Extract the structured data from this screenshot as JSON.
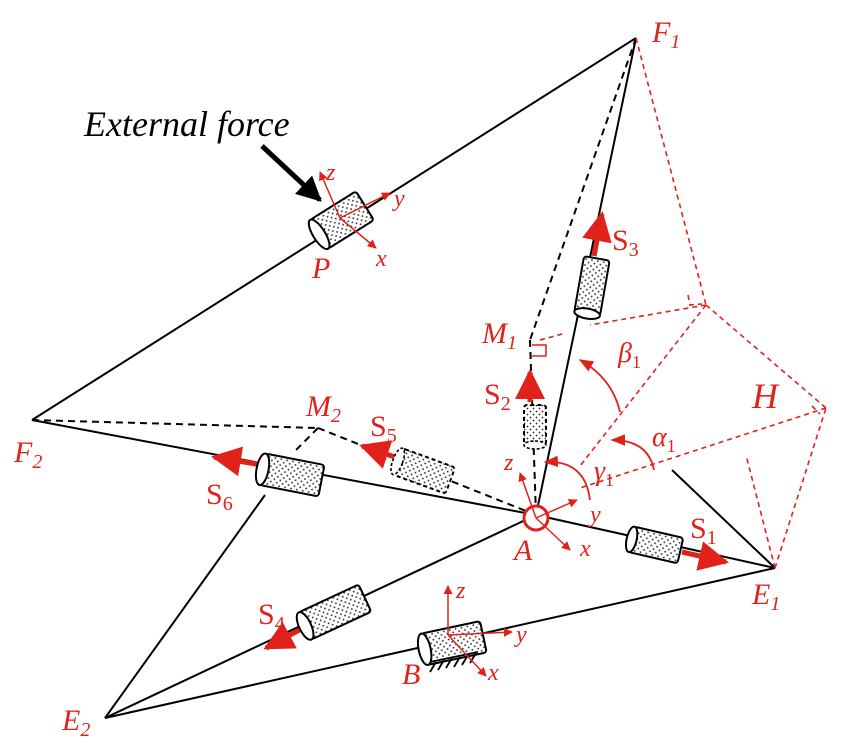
{
  "colors": {
    "accent": "#e0221a",
    "line": "#000000"
  },
  "annotation": {
    "external_force": "External force"
  },
  "points": {
    "F1": "F",
    "F1_sub": "1",
    "F2": "F",
    "F2_sub": "2",
    "E1": "E",
    "E1_sub": "1",
    "E2": "E",
    "E2_sub": "2",
    "M1": "M",
    "M1_sub": "1",
    "M2": "M",
    "M2_sub": "2",
    "A": "A",
    "B": "B",
    "P": "P",
    "H": "H"
  },
  "actuators": {
    "S1": "S",
    "S1_sub": "1",
    "S2": "S",
    "S2_sub": "2",
    "S3": "S",
    "S3_sub": "3",
    "S4": "S",
    "S4_sub": "4",
    "S5": "S",
    "S5_sub": "5",
    "S6": "S",
    "S6_sub": "6"
  },
  "angles": {
    "alpha": "α",
    "alpha_sub": "1",
    "beta": "β",
    "beta_sub": "1",
    "gamma": "γ",
    "gamma_sub": "1"
  },
  "axes": {
    "x": "x",
    "y": "y",
    "z": "z"
  },
  "icons": [
    "cylinder-joint-icon",
    "fixed-ground-icon",
    "arrow-icon"
  ]
}
